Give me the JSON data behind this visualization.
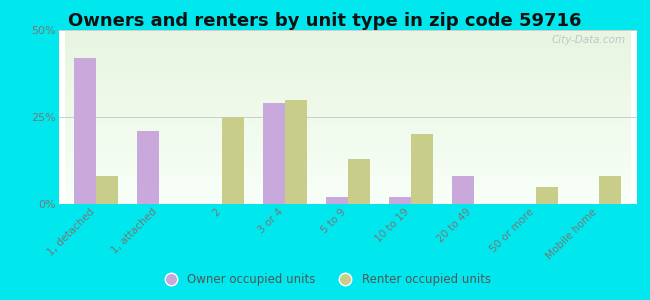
{
  "title": "Owners and renters by unit type in zip code 59716",
  "categories": [
    "1, detached",
    "1, attached",
    "2",
    "3 or 4",
    "5 to 9",
    "10 to 19",
    "20 to 49",
    "50 or more",
    "Mobile home"
  ],
  "owner_values": [
    42,
    21,
    0,
    29,
    2,
    2,
    8,
    0,
    0
  ],
  "renter_values": [
    8,
    0,
    25,
    30,
    13,
    20,
    0,
    5,
    8
  ],
  "owner_color": "#c9a8dc",
  "renter_color": "#c8cd8a",
  "ylim": [
    0,
    50
  ],
  "yticks": [
    0,
    25,
    50
  ],
  "ytick_labels": [
    "0%",
    "25%",
    "50%"
  ],
  "outer_background": "#00e8ee",
  "bar_width": 0.35,
  "title_fontsize": 13,
  "legend_owner": "Owner occupied units",
  "legend_renter": "Renter occupied units",
  "watermark": "City-Data.com",
  "grid_color": "#cccccc",
  "tick_color": "#777777"
}
